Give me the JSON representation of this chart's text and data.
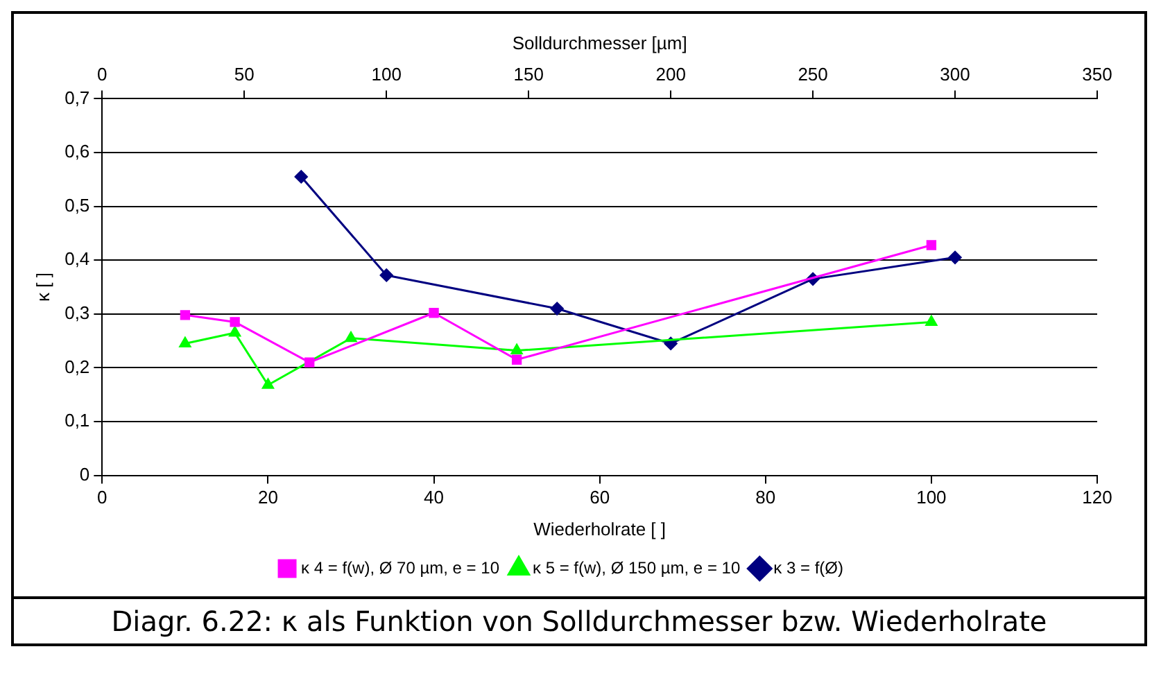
{
  "chart_data": {
    "type": "line",
    "xlabel": "Wiederholrate [ ]",
    "ylabel": "κ [ ]",
    "x2label": "Solldurchmesser [µm]",
    "xlim": [
      0,
      120
    ],
    "xticks": [
      0,
      20,
      40,
      60,
      80,
      100,
      120
    ],
    "x2lim": [
      0,
      350
    ],
    "x2ticks": [
      0,
      50,
      100,
      150,
      200,
      250,
      300,
      350
    ],
    "ylim": [
      0,
      0.7
    ],
    "yticks": [
      {
        "value": 0,
        "label": "0"
      },
      {
        "value": 0.1,
        "label": "0,1"
      },
      {
        "value": 0.2,
        "label": "0,2"
      },
      {
        "value": 0.3,
        "label": "0,3"
      },
      {
        "value": 0.4,
        "label": "0,4"
      },
      {
        "value": 0.5,
        "label": "0,5"
      },
      {
        "value": 0.6,
        "label": "0,6"
      },
      {
        "value": 0.7,
        "label": "0,7"
      }
    ],
    "grid": "y",
    "legend": "bottom",
    "series": [
      {
        "name": "κ 4 = f(w), Ø 70 µm, e = 10",
        "color": "#ff00ff",
        "marker": "square",
        "x": [
          10,
          16,
          25,
          40,
          50,
          100
        ],
        "values": [
          0.298,
          0.285,
          0.21,
          0.302,
          0.215,
          0.428
        ]
      },
      {
        "name": "κ 5 = f(w), Ø 150 µm, e = 10",
        "color": "#00ff00",
        "marker": "triangle",
        "x": [
          10,
          16,
          20,
          30,
          50,
          100
        ],
        "values": [
          0.245,
          0.265,
          0.168,
          0.255,
          0.232,
          0.285
        ]
      },
      {
        "name": "κ 3 = f(Ø)",
        "color": "#000080",
        "marker": "diamond",
        "axis": "x2",
        "x": [
          70,
          100,
          160,
          200,
          250,
          300
        ],
        "values": [
          0.555,
          0.372,
          0.31,
          0.245,
          0.365,
          0.405
        ]
      }
    ],
    "annotations": [
      "Diagr. 6.22:  κ als Funktion von Solldurchmesser bzw. Wiederholrate"
    ]
  }
}
